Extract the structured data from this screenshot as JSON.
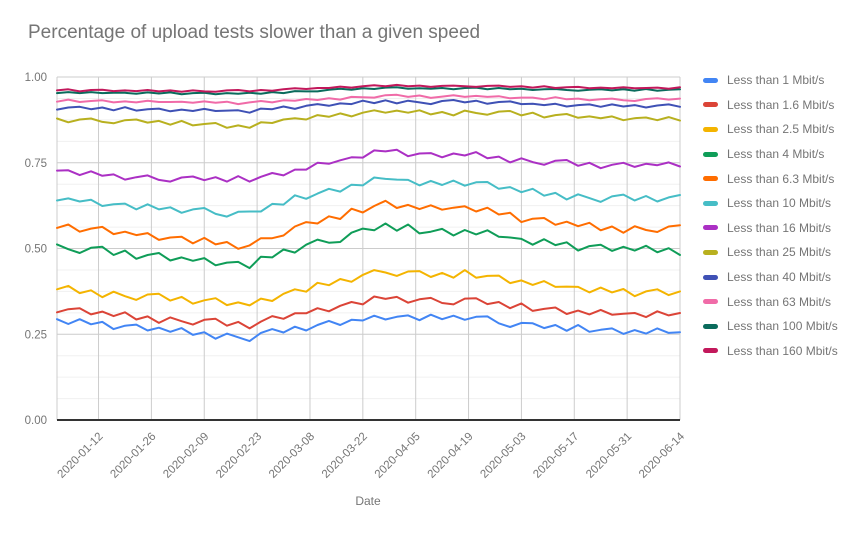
{
  "page": {
    "background": "#ffffff"
  },
  "chart_data": {
    "type": "line",
    "title": "Percentage of upload tests slower than a given speed",
    "xlabel": "Date",
    "ylabel": "",
    "ylim": [
      0,
      1
    ],
    "grid": true,
    "legend_position": "right",
    "y_ticks": [
      "0.00",
      "0.25",
      "0.50",
      "0.75",
      "1.00"
    ],
    "y_tick_values": [
      0,
      0.25,
      0.5,
      0.75,
      1
    ],
    "y_minor_step": 0.0625,
    "x_ticks": [
      "2020-01-12",
      "2020-01-26",
      "2020-02-09",
      "2020-02-23",
      "2020-03-08",
      "2020-03-22",
      "2020-04-05",
      "2020-04-19",
      "2020-05-03",
      "2020-05-17",
      "2020-05-31",
      "2020-06-14"
    ],
    "colors": {
      "title_text": "#757575",
      "axis_text": "#757575",
      "gridline": "#cccccc",
      "minor_gridline": "#f0f0f0",
      "baseline": "#333333"
    },
    "x": [
      "2020-01-01",
      "2020-01-04",
      "2020-01-07",
      "2020-01-10",
      "2020-01-13",
      "2020-01-16",
      "2020-01-19",
      "2020-01-22",
      "2020-01-25",
      "2020-01-28",
      "2020-01-31",
      "2020-02-03",
      "2020-02-06",
      "2020-02-09",
      "2020-02-12",
      "2020-02-15",
      "2020-02-18",
      "2020-02-21",
      "2020-02-24",
      "2020-02-27",
      "2020-03-01",
      "2020-03-04",
      "2020-03-07",
      "2020-03-10",
      "2020-03-13",
      "2020-03-16",
      "2020-03-19",
      "2020-03-22",
      "2020-03-25",
      "2020-03-28",
      "2020-03-31",
      "2020-04-03",
      "2020-04-06",
      "2020-04-09",
      "2020-04-12",
      "2020-04-15",
      "2020-04-18",
      "2020-04-21",
      "2020-04-24",
      "2020-04-27",
      "2020-04-30",
      "2020-05-03",
      "2020-05-06",
      "2020-05-09",
      "2020-05-12",
      "2020-05-15",
      "2020-05-18",
      "2020-05-21",
      "2020-05-24",
      "2020-05-27",
      "2020-05-30",
      "2020-06-02",
      "2020-06-05",
      "2020-06-08",
      "2020-06-11",
      "2020-06-14"
    ],
    "series": [
      {
        "name": "Less than 1 Mbit/s",
        "color": "#4285F4",
        "values": [
          0.294,
          0.28,
          0.294,
          0.279,
          0.286,
          0.265,
          0.275,
          0.278,
          0.261,
          0.269,
          0.257,
          0.268,
          0.248,
          0.256,
          0.237,
          0.252,
          0.241,
          0.23,
          0.254,
          0.265,
          0.255,
          0.272,
          0.261,
          0.277,
          0.289,
          0.277,
          0.292,
          0.29,
          0.304,
          0.293,
          0.301,
          0.305,
          0.291,
          0.307,
          0.294,
          0.304,
          0.292,
          0.301,
          0.302,
          0.282,
          0.271,
          0.283,
          0.282,
          0.268,
          0.277,
          0.26,
          0.277,
          0.257,
          0.263,
          0.267,
          0.251,
          0.262,
          0.252,
          0.267,
          0.254,
          0.256
        ]
      },
      {
        "name": "Less than 1.6 Mbit/s",
        "color": "#DB4437",
        "values": [
          0.314,
          0.323,
          0.326,
          0.308,
          0.316,
          0.303,
          0.314,
          0.293,
          0.302,
          0.283,
          0.299,
          0.288,
          0.278,
          0.292,
          0.295,
          0.275,
          0.286,
          0.267,
          0.287,
          0.303,
          0.295,
          0.311,
          0.311,
          0.326,
          0.317,
          0.333,
          0.344,
          0.337,
          0.36,
          0.353,
          0.359,
          0.342,
          0.352,
          0.356,
          0.341,
          0.337,
          0.354,
          0.355,
          0.338,
          0.344,
          0.326,
          0.34,
          0.318,
          0.324,
          0.328,
          0.309,
          0.319,
          0.308,
          0.321,
          0.307,
          0.31,
          0.312,
          0.3,
          0.317,
          0.305,
          0.312
        ]
      },
      {
        "name": "Less than 2.5 Mbit/s",
        "color": "#F4B400",
        "values": [
          0.381,
          0.391,
          0.37,
          0.378,
          0.358,
          0.374,
          0.361,
          0.35,
          0.366,
          0.368,
          0.348,
          0.359,
          0.339,
          0.349,
          0.355,
          0.335,
          0.343,
          0.334,
          0.354,
          0.347,
          0.368,
          0.381,
          0.374,
          0.4,
          0.393,
          0.411,
          0.403,
          0.423,
          0.437,
          0.43,
          0.42,
          0.433,
          0.434,
          0.417,
          0.429,
          0.415,
          0.437,
          0.415,
          0.42,
          0.421,
          0.399,
          0.407,
          0.394,
          0.405,
          0.388,
          0.389,
          0.388,
          0.372,
          0.386,
          0.372,
          0.382,
          0.361,
          0.375,
          0.381,
          0.364,
          0.375
        ]
      },
      {
        "name": "Less than 4 Mbit/s",
        "color": "#0F9D58",
        "values": [
          0.512,
          0.498,
          0.487,
          0.502,
          0.505,
          0.481,
          0.494,
          0.47,
          0.481,
          0.487,
          0.465,
          0.474,
          0.464,
          0.472,
          0.451,
          0.459,
          0.461,
          0.443,
          0.476,
          0.474,
          0.497,
          0.488,
          0.511,
          0.526,
          0.517,
          0.519,
          0.546,
          0.558,
          0.553,
          0.573,
          0.552,
          0.57,
          0.544,
          0.549,
          0.557,
          0.538,
          0.554,
          0.541,
          0.553,
          0.534,
          0.532,
          0.528,
          0.511,
          0.527,
          0.51,
          0.518,
          0.494,
          0.507,
          0.511,
          0.493,
          0.505,
          0.494,
          0.508,
          0.489,
          0.501,
          0.481
        ]
      },
      {
        "name": "Less than 6.3 Mbit/s",
        "color": "#FF6D00",
        "values": [
          0.56,
          0.57,
          0.549,
          0.558,
          0.563,
          0.542,
          0.549,
          0.539,
          0.545,
          0.525,
          0.532,
          0.534,
          0.515,
          0.531,
          0.512,
          0.519,
          0.499,
          0.509,
          0.53,
          0.53,
          0.538,
          0.564,
          0.577,
          0.573,
          0.594,
          0.586,
          0.616,
          0.605,
          0.624,
          0.639,
          0.618,
          0.627,
          0.615,
          0.626,
          0.613,
          0.619,
          0.623,
          0.608,
          0.619,
          0.599,
          0.604,
          0.577,
          0.587,
          0.589,
          0.569,
          0.578,
          0.565,
          0.575,
          0.553,
          0.564,
          0.546,
          0.565,
          0.554,
          0.548,
          0.564,
          0.568
        ]
      },
      {
        "name": "Less than 10 Mbit/s",
        "color": "#46BDC6",
        "values": [
          0.64,
          0.646,
          0.637,
          0.642,
          0.624,
          0.629,
          0.631,
          0.614,
          0.629,
          0.614,
          0.62,
          0.604,
          0.614,
          0.618,
          0.601,
          0.593,
          0.607,
          0.608,
          0.608,
          0.63,
          0.628,
          0.655,
          0.645,
          0.66,
          0.674,
          0.666,
          0.686,
          0.684,
          0.707,
          0.703,
          0.701,
          0.7,
          0.684,
          0.697,
          0.685,
          0.698,
          0.683,
          0.693,
          0.694,
          0.674,
          0.679,
          0.664,
          0.674,
          0.654,
          0.662,
          0.643,
          0.658,
          0.647,
          0.636,
          0.652,
          0.657,
          0.64,
          0.653,
          0.637,
          0.649,
          0.656
        ]
      },
      {
        "name": "Less than 16 Mbit/s",
        "color": "#AB30C4",
        "values": [
          0.727,
          0.728,
          0.714,
          0.725,
          0.712,
          0.716,
          0.701,
          0.708,
          0.713,
          0.7,
          0.695,
          0.707,
          0.71,
          0.699,
          0.708,
          0.695,
          0.711,
          0.695,
          0.709,
          0.72,
          0.713,
          0.73,
          0.73,
          0.75,
          0.747,
          0.757,
          0.766,
          0.765,
          0.786,
          0.783,
          0.788,
          0.769,
          0.777,
          0.778,
          0.766,
          0.777,
          0.771,
          0.781,
          0.763,
          0.768,
          0.751,
          0.763,
          0.752,
          0.744,
          0.756,
          0.758,
          0.741,
          0.75,
          0.734,
          0.744,
          0.75,
          0.738,
          0.747,
          0.743,
          0.751,
          0.739
        ]
      },
      {
        "name": "Less than 25 Mbit/s",
        "color": "#B8B01F",
        "values": [
          0.879,
          0.868,
          0.876,
          0.879,
          0.869,
          0.865,
          0.874,
          0.876,
          0.867,
          0.872,
          0.861,
          0.872,
          0.859,
          0.863,
          0.866,
          0.852,
          0.859,
          0.852,
          0.868,
          0.866,
          0.876,
          0.88,
          0.876,
          0.889,
          0.884,
          0.894,
          0.885,
          0.896,
          0.903,
          0.896,
          0.902,
          0.896,
          0.903,
          0.891,
          0.898,
          0.888,
          0.902,
          0.895,
          0.89,
          0.899,
          0.901,
          0.888,
          0.896,
          0.882,
          0.889,
          0.892,
          0.881,
          0.885,
          0.88,
          0.885,
          0.874,
          0.88,
          0.882,
          0.874,
          0.883,
          0.873
        ]
      },
      {
        "name": "Less than 40 Mbit/s",
        "color": "#3F51B5",
        "values": [
          0.905,
          0.911,
          0.913,
          0.906,
          0.911,
          0.903,
          0.912,
          0.902,
          0.906,
          0.908,
          0.9,
          0.905,
          0.901,
          0.907,
          0.901,
          0.902,
          0.903,
          0.896,
          0.908,
          0.906,
          0.914,
          0.907,
          0.916,
          0.921,
          0.916,
          0.923,
          0.921,
          0.931,
          0.924,
          0.932,
          0.923,
          0.931,
          0.926,
          0.921,
          0.93,
          0.933,
          0.926,
          0.931,
          0.922,
          0.927,
          0.929,
          0.921,
          0.922,
          0.918,
          0.922,
          0.914,
          0.918,
          0.92,
          0.913,
          0.92,
          0.914,
          0.918,
          0.911,
          0.917,
          0.92,
          0.913
        ]
      },
      {
        "name": "Less than 63 Mbit/s",
        "color": "#F06BA8",
        "values": [
          0.928,
          0.934,
          0.927,
          0.93,
          0.932,
          0.926,
          0.929,
          0.926,
          0.931,
          0.927,
          0.927,
          0.928,
          0.925,
          0.929,
          0.925,
          0.928,
          0.921,
          0.926,
          0.93,
          0.926,
          0.932,
          0.931,
          0.936,
          0.933,
          0.938,
          0.934,
          0.942,
          0.941,
          0.94,
          0.947,
          0.948,
          0.942,
          0.946,
          0.939,
          0.943,
          0.947,
          0.942,
          0.945,
          0.942,
          0.944,
          0.938,
          0.94,
          0.94,
          0.935,
          0.941,
          0.935,
          0.937,
          0.932,
          0.935,
          0.937,
          0.932,
          0.93,
          0.936,
          0.938,
          0.934,
          0.937
        ]
      },
      {
        "name": "Less than 100 Mbit/s",
        "color": "#0A6B5C",
        "values": [
          0.953,
          0.956,
          0.953,
          0.956,
          0.953,
          0.954,
          0.954,
          0.951,
          0.955,
          0.952,
          0.955,
          0.95,
          0.953,
          0.954,
          0.95,
          0.953,
          0.951,
          0.954,
          0.951,
          0.956,
          0.953,
          0.959,
          0.958,
          0.958,
          0.963,
          0.966,
          0.963,
          0.967,
          0.965,
          0.969,
          0.97,
          0.966,
          0.967,
          0.966,
          0.968,
          0.964,
          0.968,
          0.969,
          0.964,
          0.968,
          0.964,
          0.966,
          0.962,
          0.964,
          0.965,
          0.962,
          0.96,
          0.963,
          0.964,
          0.961,
          0.964,
          0.96,
          0.965,
          0.96,
          0.963,
          0.964
        ]
      },
      {
        "name": "Less than 160 Mbit/s",
        "color": "#C2185B",
        "values": [
          0.961,
          0.964,
          0.958,
          0.962,
          0.963,
          0.959,
          0.961,
          0.959,
          0.962,
          0.958,
          0.961,
          0.957,
          0.961,
          0.958,
          0.957,
          0.961,
          0.962,
          0.958,
          0.962,
          0.96,
          0.964,
          0.967,
          0.965,
          0.968,
          0.968,
          0.972,
          0.969,
          0.973,
          0.976,
          0.973,
          0.977,
          0.973,
          0.975,
          0.971,
          0.974,
          0.975,
          0.973,
          0.971,
          0.974,
          0.975,
          0.971,
          0.973,
          0.969,
          0.973,
          0.968,
          0.97,
          0.971,
          0.967,
          0.969,
          0.967,
          0.97,
          0.967,
          0.968,
          0.969,
          0.966,
          0.97
        ]
      }
    ]
  }
}
